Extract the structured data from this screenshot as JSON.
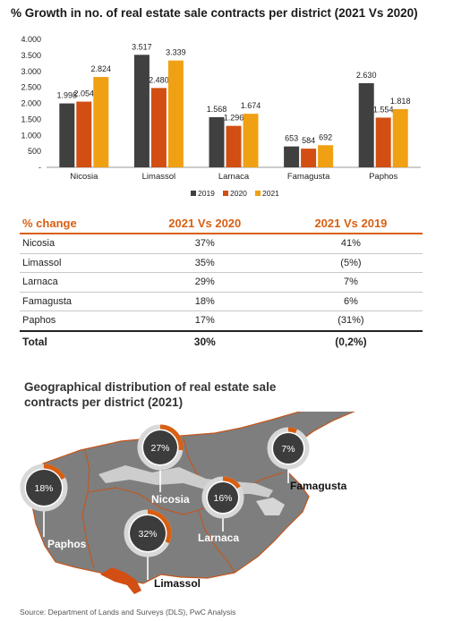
{
  "header": {
    "title": "% Growth in no. of real estate sale contracts per district (2021 Vs 2020)"
  },
  "chart_data": {
    "type": "bar",
    "title": "% Growth in no. of real estate sale contracts per district (2021 Vs 2020)",
    "categories": [
      "Nicosia",
      "Limassol",
      "Larnaca",
      "Famagusta",
      "Paphos"
    ],
    "series": [
      {
        "name": "2019",
        "values": [
          1998,
          3517,
          1568,
          653,
          2630
        ],
        "labels": [
          "1.998",
          "3.517",
          "1.568",
          "653",
          "2.630"
        ],
        "color": "#404040"
      },
      {
        "name": "2020",
        "values": [
          2054,
          2480,
          1296,
          584,
          1554
        ],
        "labels": [
          "2.054",
          "2.480",
          "1.296",
          "584",
          "1.554"
        ],
        "color": "#d24e13"
      },
      {
        "name": "2021",
        "values": [
          2824,
          3339,
          1674,
          692,
          1818
        ],
        "labels": [
          "2.824",
          "3.339",
          "1.674",
          "692",
          "1.818"
        ],
        "color": "#f0a013"
      }
    ],
    "yticks": [
      0,
      500,
      1000,
      1500,
      2000,
      2500,
      3000,
      3500,
      4000
    ],
    "ytick_labels": [
      "-",
      "500",
      "1.000",
      "1.500",
      "2.000",
      "2.500",
      "3.000",
      "3.500",
      "4.000"
    ],
    "ylim": [
      0,
      4000
    ],
    "xlabel": "",
    "ylabel": "",
    "grid": false,
    "legend": "bottom"
  },
  "table": {
    "headers": [
      "% change",
      "2021 Vs 2020",
      "2021 Vs 2019"
    ],
    "rows": [
      {
        "district": "Nicosia",
        "vs2020": "37%",
        "vs2019": "41%",
        "vs2020_color": "#3aa635",
        "vs2019_color": "#3aa635"
      },
      {
        "district": "Limassol",
        "vs2020": "35%",
        "vs2019": "(5%)",
        "vs2020_color": "#3aa635",
        "vs2019_color": "#d43b2c"
      },
      {
        "district": "Larnaca",
        "vs2020": "29%",
        "vs2019": "7%",
        "vs2020_color": "#3aa635",
        "vs2019_color": "#3aa635"
      },
      {
        "district": "Famagusta",
        "vs2020": "18%",
        "vs2019": "6%",
        "vs2020_color": "#3aa635",
        "vs2019_color": "#3aa635"
      },
      {
        "district": "Paphos",
        "vs2020": "17%",
        "vs2019": "(31%)",
        "vs2020_color": "#3aa635",
        "vs2019_color": "#d43b2c"
      }
    ],
    "total": {
      "district": "Total",
      "vs2020": "30%",
      "vs2019": "(0,2%)",
      "vs2020_color": "#3aa635",
      "vs2019_color": "#d43b2c"
    }
  },
  "map": {
    "title": "Geographical distribution of real estate sale contracts per district (2021)",
    "districts": [
      {
        "name": "Nicosia",
        "share": 27,
        "label": "27%"
      },
      {
        "name": "Famagusta",
        "share": 7,
        "label": "7%"
      },
      {
        "name": "Paphos",
        "share": 18,
        "label": "18%"
      },
      {
        "name": "Larnaca",
        "share": 16,
        "label": "16%"
      },
      {
        "name": "Limassol",
        "share": 32,
        "label": "32%"
      }
    ]
  },
  "colors": {
    "accent": "#d85f12",
    "positive": "#3aa635",
    "negative": "#d43b2c",
    "map_land": "#7e7e7e",
    "bubble": "#3c3c3c"
  },
  "source": "Source: Department of Lands and Surveys (DLS), PwC Analysis"
}
